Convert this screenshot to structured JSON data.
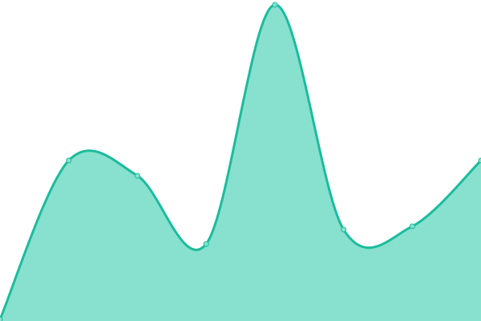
{
  "chart_data": {
    "type": "area",
    "title": "",
    "xlabel": "",
    "ylabel": "",
    "x": [
      0,
      1,
      2,
      3,
      4,
      5,
      6,
      7
    ],
    "values": [
      2,
      200,
      181,
      96,
      394,
      114,
      118,
      200
    ],
    "ylim": [
      0,
      400
    ],
    "grid": false,
    "axes_visible": false,
    "curve": "smooth",
    "colors": {
      "line": "#1abc9c",
      "fill": "#88e0cf",
      "marker_fill": "#88e0cf",
      "marker_stroke": "#1abc9c"
    }
  }
}
